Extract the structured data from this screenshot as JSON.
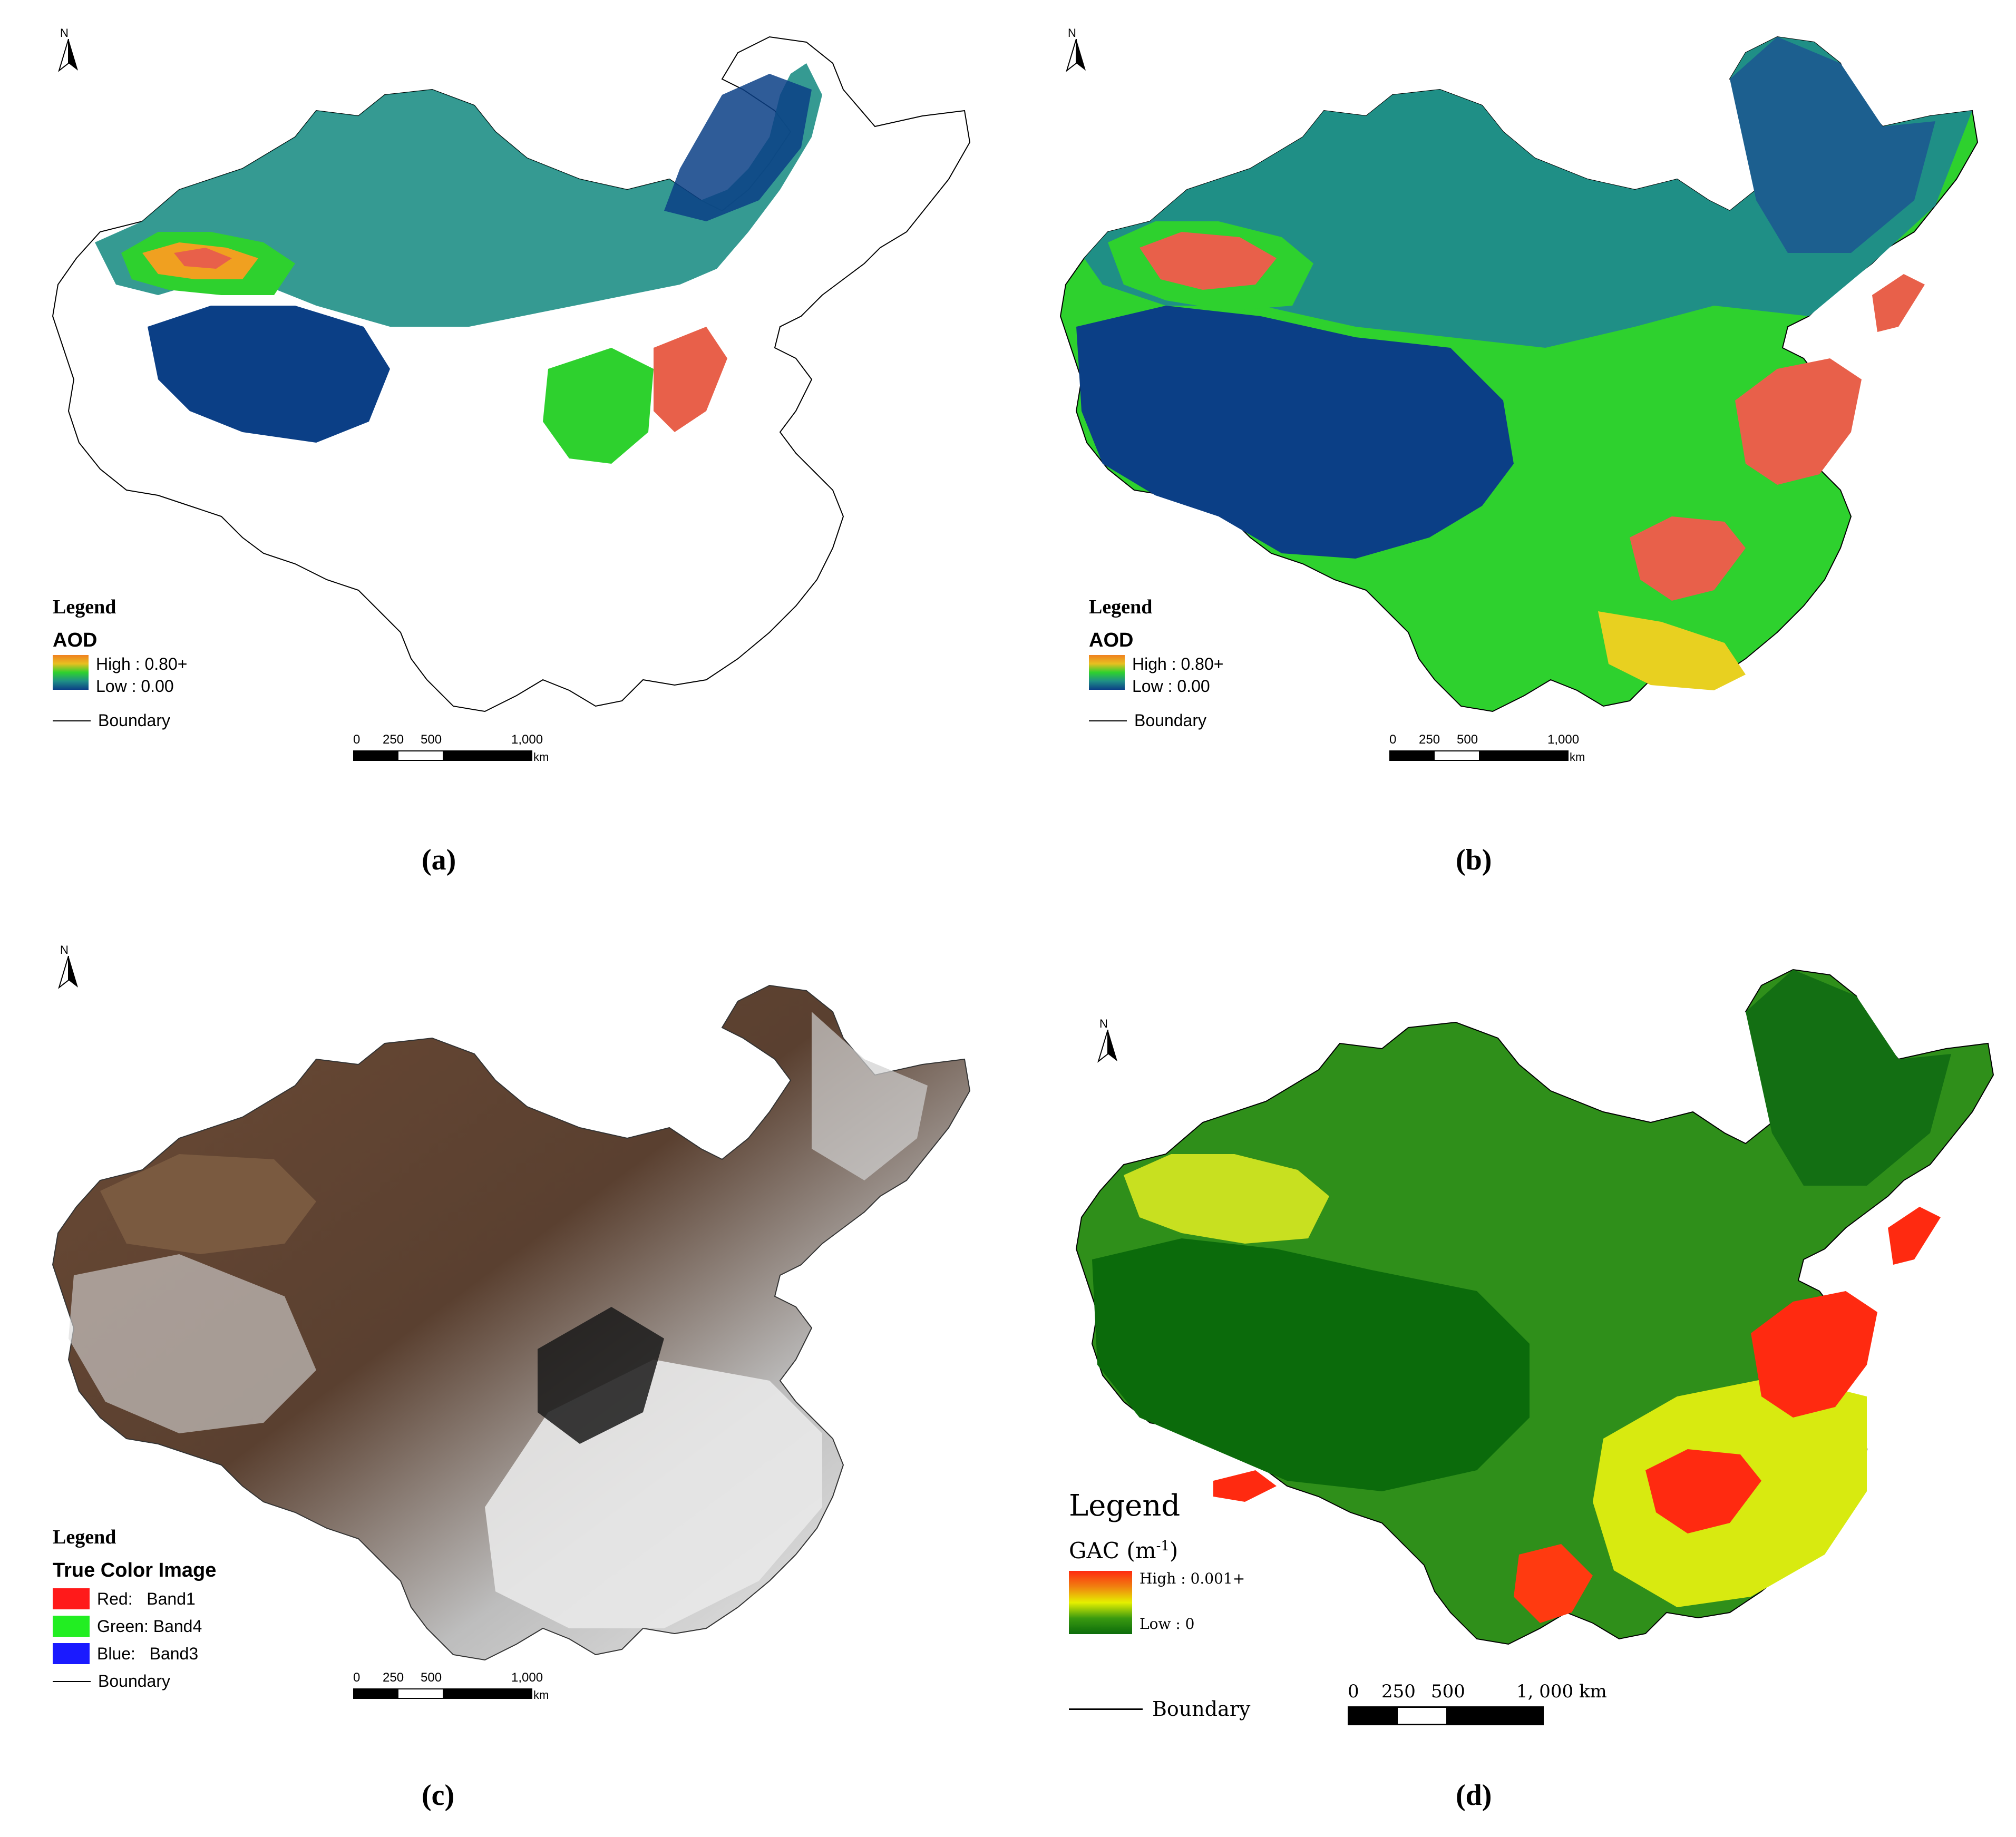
{
  "panels": [
    {
      "id": "a",
      "caption": "(a)",
      "north": "N",
      "legend": {
        "title": "Legend",
        "subtitle": "AOD",
        "high": "High : 0.80+",
        "low": "Low : 0.00",
        "boundary": "Boundary"
      },
      "scale": {
        "ticks": [
          "0",
          "250",
          "500",
          "1,000"
        ],
        "unit": "km"
      },
      "coverage": "partial"
    },
    {
      "id": "b",
      "caption": "(b)",
      "north": "N",
      "legend": {
        "title": "Legend",
        "subtitle": "AOD",
        "high": "High : 0.80+",
        "low": "Low : 0.00",
        "boundary": "Boundary"
      },
      "scale": {
        "ticks": [
          "0",
          "250",
          "500",
          "1,000"
        ],
        "unit": "km"
      },
      "coverage": "full"
    },
    {
      "id": "c",
      "caption": "(c)",
      "north": "N",
      "legend": {
        "title": "Legend",
        "subtitle": "True Color Image",
        "bands": [
          {
            "label": "Red:   Band1",
            "color": "#ff1a1a"
          },
          {
            "label": "Green: Band4",
            "color": "#22ee22"
          },
          {
            "label": "Blue:   Band3",
            "color": "#1a1aff"
          }
        ],
        "boundary": "Boundary"
      },
      "scale": {
        "ticks": [
          "0",
          "250",
          "500",
          "1,000"
        ],
        "unit": "km"
      }
    },
    {
      "id": "d",
      "caption": "(d)",
      "north": "N",
      "legend": {
        "title": "Legend",
        "subtitle": "GAC  (m",
        "subtitle_sup": "-1",
        "subtitle_end": ")",
        "high": "High : 0.001+",
        "low": "Low : 0",
        "boundary": "Boundary"
      },
      "scale": {
        "ticks": [
          "0",
          "250",
          "500",
          "1, 000 km"
        ]
      }
    }
  ],
  "colors": {
    "aod_high": "#e8604a",
    "aod_mid": "#2ed12e",
    "aod_low": "#0b3f86",
    "aod_teal": "#1f8f86",
    "gac_high": "#ff2a10",
    "gac_mid": "#e6f000",
    "gac_low": "#0b6b0b",
    "tc_brown": "#6b4a35",
    "tc_cloud": "#e8e8e8"
  }
}
